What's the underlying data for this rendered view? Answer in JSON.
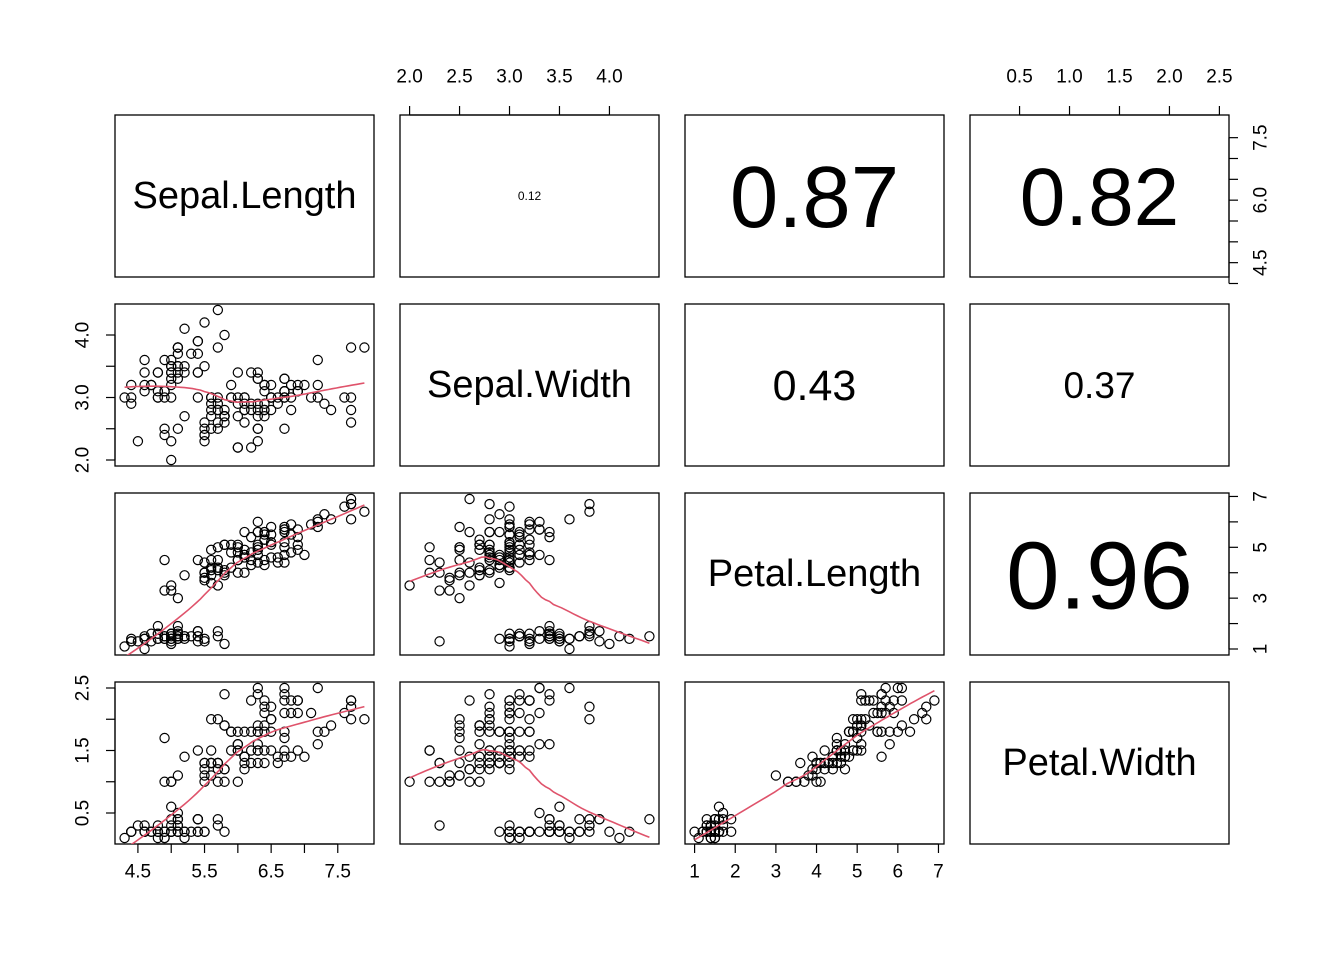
{
  "chart_data": {
    "type": "scatter",
    "title": "",
    "variables": [
      "Sepal.Length",
      "Sepal.Width",
      "Petal.Length",
      "Petal.Width"
    ],
    "ranges": {
      "Sepal.Length": [
        4.3,
        7.9
      ],
      "Sepal.Width": [
        2.0,
        4.4
      ],
      "Petal.Length": [
        1.0,
        6.9
      ],
      "Petal.Width": [
        0.1,
        2.5
      ]
    },
    "ticks": {
      "Sepal.Length": {
        "bottom": [
          "4.5",
          "5.5",
          "6.5",
          "7.5"
        ],
        "right": [
          "4.5",
          "6.0",
          "7.5"
        ],
        "right_values": [
          4.5,
          6.0,
          7.5
        ],
        "bottom_values": [
          4.5,
          5.5,
          6.5,
          7.5
        ],
        "minor": [
          5.0,
          6.0,
          7.0
        ],
        "minor_right": [
          4.0,
          5.0,
          5.5,
          6.5,
          7.0
        ]
      },
      "Sepal.Width": {
        "top": [
          "2.0",
          "2.5",
          "3.0",
          "3.5",
          "4.0"
        ],
        "top_values": [
          2.0,
          2.5,
          3.0,
          3.5,
          4.0
        ],
        "left": [
          "2.0",
          "3.0",
          "4.0"
        ],
        "left_values": [
          2.0,
          3.0,
          4.0
        ],
        "minor_left": [
          2.5,
          3.5
        ]
      },
      "Petal.Length": {
        "bottom": [
          "1",
          "2",
          "3",
          "4",
          "5",
          "6",
          "7"
        ],
        "bottom_values": [
          1,
          2,
          3,
          4,
          5,
          6,
          7
        ],
        "right": [
          "1",
          "3",
          "5",
          "7"
        ],
        "right_values": [
          1,
          3,
          5,
          7
        ],
        "minor_right": [
          2,
          4,
          6
        ]
      },
      "Petal.Width": {
        "top": [
          "0.5",
          "1.0",
          "1.5",
          "2.0",
          "2.5"
        ],
        "top_values": [
          0.5,
          1.0,
          1.5,
          2.0,
          2.5
        ],
        "left": [
          "0.5",
          "1.5",
          "2.5"
        ],
        "left_values": [
          0.5,
          1.5,
          2.5
        ],
        "minor_left": [
          1.0,
          2.0
        ]
      }
    },
    "correlations": [
      {
        "row": 0,
        "col": 1,
        "label": "0.12",
        "value": 0.12
      },
      {
        "row": 0,
        "col": 2,
        "label": "0.87",
        "value": 0.87
      },
      {
        "row": 0,
        "col": 3,
        "label": "0.82",
        "value": 0.82
      },
      {
        "row": 1,
        "col": 2,
        "label": "0.43",
        "value": 0.43
      },
      {
        "row": 1,
        "col": 3,
        "label": "0.37",
        "value": 0.37
      },
      {
        "row": 2,
        "col": 3,
        "label": "0.96",
        "value": 0.96
      }
    ],
    "smoother_color": "#DF536B",
    "point_color": "#000000",
    "observations": [
      [
        5.1,
        3.5,
        1.4,
        0.2
      ],
      [
        4.9,
        3.0,
        1.4,
        0.2
      ],
      [
        4.7,
        3.2,
        1.3,
        0.2
      ],
      [
        4.6,
        3.1,
        1.5,
        0.2
      ],
      [
        5.0,
        3.6,
        1.4,
        0.2
      ],
      [
        5.4,
        3.9,
        1.7,
        0.4
      ],
      [
        4.6,
        3.4,
        1.4,
        0.3
      ],
      [
        5.0,
        3.4,
        1.5,
        0.2
      ],
      [
        4.4,
        2.9,
        1.4,
        0.2
      ],
      [
        4.9,
        3.1,
        1.5,
        0.1
      ],
      [
        5.4,
        3.7,
        1.5,
        0.2
      ],
      [
        4.8,
        3.4,
        1.6,
        0.2
      ],
      [
        4.8,
        3.0,
        1.4,
        0.1
      ],
      [
        4.3,
        3.0,
        1.1,
        0.1
      ],
      [
        5.8,
        4.0,
        1.2,
        0.2
      ],
      [
        5.7,
        4.4,
        1.5,
        0.4
      ],
      [
        5.4,
        3.9,
        1.3,
        0.4
      ],
      [
        5.1,
        3.5,
        1.4,
        0.3
      ],
      [
        5.7,
        3.8,
        1.7,
        0.3
      ],
      [
        5.1,
        3.8,
        1.5,
        0.3
      ],
      [
        5.4,
        3.4,
        1.7,
        0.2
      ],
      [
        5.1,
        3.7,
        1.5,
        0.4
      ],
      [
        4.6,
        3.6,
        1.0,
        0.2
      ],
      [
        5.1,
        3.3,
        1.7,
        0.5
      ],
      [
        4.8,
        3.4,
        1.9,
        0.2
      ],
      [
        5.0,
        3.0,
        1.6,
        0.2
      ],
      [
        5.0,
        3.4,
        1.6,
        0.4
      ],
      [
        5.2,
        3.5,
        1.5,
        0.2
      ],
      [
        5.2,
        3.4,
        1.4,
        0.2
      ],
      [
        4.7,
        3.2,
        1.6,
        0.2
      ],
      [
        4.8,
        3.1,
        1.6,
        0.2
      ],
      [
        5.4,
        3.4,
        1.5,
        0.4
      ],
      [
        5.2,
        4.1,
        1.5,
        0.1
      ],
      [
        5.5,
        4.2,
        1.4,
        0.2
      ],
      [
        4.9,
        3.1,
        1.5,
        0.2
      ],
      [
        5.0,
        3.2,
        1.2,
        0.2
      ],
      [
        5.5,
        3.5,
        1.3,
        0.2
      ],
      [
        4.9,
        3.6,
        1.4,
        0.1
      ],
      [
        4.4,
        3.0,
        1.3,
        0.2
      ],
      [
        5.1,
        3.4,
        1.5,
        0.2
      ],
      [
        5.0,
        3.5,
        1.3,
        0.3
      ],
      [
        4.5,
        2.3,
        1.3,
        0.3
      ],
      [
        4.4,
        3.2,
        1.3,
        0.2
      ],
      [
        5.0,
        3.5,
        1.6,
        0.6
      ],
      [
        5.1,
        3.8,
        1.9,
        0.4
      ],
      [
        4.8,
        3.0,
        1.4,
        0.3
      ],
      [
        5.1,
        3.8,
        1.6,
        0.2
      ],
      [
        4.6,
        3.2,
        1.4,
        0.2
      ],
      [
        5.3,
        3.7,
        1.5,
        0.2
      ],
      [
        5.0,
        3.3,
        1.4,
        0.2
      ],
      [
        7.0,
        3.2,
        4.7,
        1.4
      ],
      [
        6.4,
        3.2,
        4.5,
        1.5
      ],
      [
        6.9,
        3.1,
        4.9,
        1.5
      ],
      [
        5.5,
        2.3,
        4.0,
        1.3
      ],
      [
        6.5,
        2.8,
        4.6,
        1.5
      ],
      [
        5.7,
        2.8,
        4.5,
        1.3
      ],
      [
        6.3,
        3.3,
        4.7,
        1.6
      ],
      [
        4.9,
        2.4,
        3.3,
        1.0
      ],
      [
        6.6,
        2.9,
        4.6,
        1.3
      ],
      [
        5.2,
        2.7,
        3.9,
        1.4
      ],
      [
        5.0,
        2.0,
        3.5,
        1.0
      ],
      [
        5.9,
        3.0,
        4.2,
        1.5
      ],
      [
        6.0,
        2.2,
        4.0,
        1.0
      ],
      [
        6.1,
        2.9,
        4.7,
        1.4
      ],
      [
        5.6,
        2.9,
        3.6,
        1.3
      ],
      [
        6.7,
        3.1,
        4.4,
        1.4
      ],
      [
        5.6,
        3.0,
        4.5,
        1.5
      ],
      [
        5.8,
        2.7,
        4.1,
        1.0
      ],
      [
        6.2,
        2.2,
        4.5,
        1.5
      ],
      [
        5.6,
        2.5,
        3.9,
        1.1
      ],
      [
        5.9,
        3.2,
        4.8,
        1.8
      ],
      [
        6.1,
        2.8,
        4.0,
        1.3
      ],
      [
        6.3,
        2.5,
        4.9,
        1.5
      ],
      [
        6.1,
        2.8,
        4.7,
        1.2
      ],
      [
        6.4,
        2.9,
        4.3,
        1.3
      ],
      [
        6.6,
        3.0,
        4.4,
        1.4
      ],
      [
        6.8,
        2.8,
        4.8,
        1.4
      ],
      [
        6.7,
        3.0,
        5.0,
        1.7
      ],
      [
        6.0,
        2.9,
        4.5,
        1.5
      ],
      [
        5.7,
        2.6,
        3.5,
        1.0
      ],
      [
        5.5,
        2.4,
        3.8,
        1.1
      ],
      [
        5.5,
        2.4,
        3.7,
        1.0
      ],
      [
        5.8,
        2.7,
        3.9,
        1.2
      ],
      [
        6.0,
        2.7,
        5.1,
        1.6
      ],
      [
        5.4,
        3.0,
        4.5,
        1.5
      ],
      [
        6.0,
        3.4,
        4.5,
        1.6
      ],
      [
        6.7,
        3.1,
        4.7,
        1.5
      ],
      [
        6.3,
        2.3,
        4.4,
        1.3
      ],
      [
        5.6,
        3.0,
        4.1,
        1.3
      ],
      [
        5.5,
        2.5,
        4.0,
        1.3
      ],
      [
        5.5,
        2.6,
        4.4,
        1.2
      ],
      [
        6.1,
        3.0,
        4.6,
        1.4
      ],
      [
        5.8,
        2.6,
        4.0,
        1.2
      ],
      [
        5.0,
        2.3,
        3.3,
        1.0
      ],
      [
        5.6,
        2.7,
        4.2,
        1.3
      ],
      [
        5.7,
        3.0,
        4.2,
        1.2
      ],
      [
        5.7,
        2.9,
        4.2,
        1.3
      ],
      [
        6.2,
        2.9,
        4.3,
        1.3
      ],
      [
        5.1,
        2.5,
        3.0,
        1.1
      ],
      [
        5.7,
        2.8,
        4.1,
        1.3
      ],
      [
        6.3,
        3.3,
        6.0,
        2.5
      ],
      [
        5.8,
        2.7,
        5.1,
        1.9
      ],
      [
        7.1,
        3.0,
        5.9,
        2.1
      ],
      [
        6.3,
        2.9,
        5.6,
        1.8
      ],
      [
        6.5,
        3.0,
        5.8,
        2.2
      ],
      [
        7.6,
        3.0,
        6.6,
        2.1
      ],
      [
        4.9,
        2.5,
        4.5,
        1.7
      ],
      [
        7.3,
        2.9,
        6.3,
        1.8
      ],
      [
        6.7,
        2.5,
        5.8,
        1.8
      ],
      [
        7.2,
        3.6,
        6.1,
        2.5
      ],
      [
        6.5,
        3.2,
        5.1,
        2.0
      ],
      [
        6.4,
        2.7,
        5.3,
        1.9
      ],
      [
        6.8,
        3.0,
        5.5,
        2.1
      ],
      [
        5.7,
        2.5,
        5.0,
        2.0
      ],
      [
        5.8,
        2.8,
        5.1,
        2.4
      ],
      [
        6.4,
        3.2,
        5.3,
        2.3
      ],
      [
        6.5,
        3.0,
        5.5,
        1.8
      ],
      [
        7.7,
        3.8,
        6.7,
        2.2
      ],
      [
        7.7,
        2.6,
        6.9,
        2.3
      ],
      [
        6.0,
        2.2,
        5.0,
        1.5
      ],
      [
        6.9,
        3.2,
        5.7,
        2.3
      ],
      [
        5.6,
        2.8,
        4.9,
        2.0
      ],
      [
        7.7,
        2.8,
        6.7,
        2.0
      ],
      [
        6.3,
        2.7,
        4.9,
        1.8
      ],
      [
        6.7,
        3.3,
        5.7,
        2.1
      ],
      [
        7.2,
        3.2,
        6.0,
        1.8
      ],
      [
        6.2,
        2.8,
        4.8,
        1.8
      ],
      [
        6.1,
        3.0,
        4.9,
        1.8
      ],
      [
        6.4,
        2.8,
        5.6,
        2.1
      ],
      [
        7.2,
        3.0,
        5.8,
        1.6
      ],
      [
        7.4,
        2.8,
        6.1,
        1.9
      ],
      [
        7.9,
        3.8,
        6.4,
        2.0
      ],
      [
        6.4,
        2.8,
        5.6,
        2.2
      ],
      [
        6.3,
        2.8,
        5.1,
        1.5
      ],
      [
        6.1,
        2.6,
        5.6,
        1.4
      ],
      [
        7.7,
        3.0,
        6.1,
        2.3
      ],
      [
        6.3,
        3.4,
        5.6,
        2.4
      ],
      [
        6.4,
        3.1,
        5.5,
        1.8
      ],
      [
        6.0,
        3.0,
        4.8,
        1.8
      ],
      [
        6.9,
        3.1,
        5.4,
        2.1
      ],
      [
        6.7,
        3.1,
        5.6,
        2.4
      ],
      [
        6.9,
        3.1,
        5.1,
        2.3
      ],
      [
        5.8,
        2.7,
        5.1,
        1.9
      ],
      [
        6.8,
        3.2,
        5.9,
        2.3
      ],
      [
        6.7,
        3.3,
        5.7,
        2.5
      ],
      [
        6.7,
        3.0,
        5.2,
        2.3
      ],
      [
        6.3,
        2.5,
        5.0,
        1.9
      ],
      [
        6.5,
        3.0,
        5.2,
        2.0
      ],
      [
        6.2,
        3.4,
        5.4,
        2.3
      ],
      [
        5.9,
        3.0,
        5.1,
        1.8
      ]
    ]
  }
}
